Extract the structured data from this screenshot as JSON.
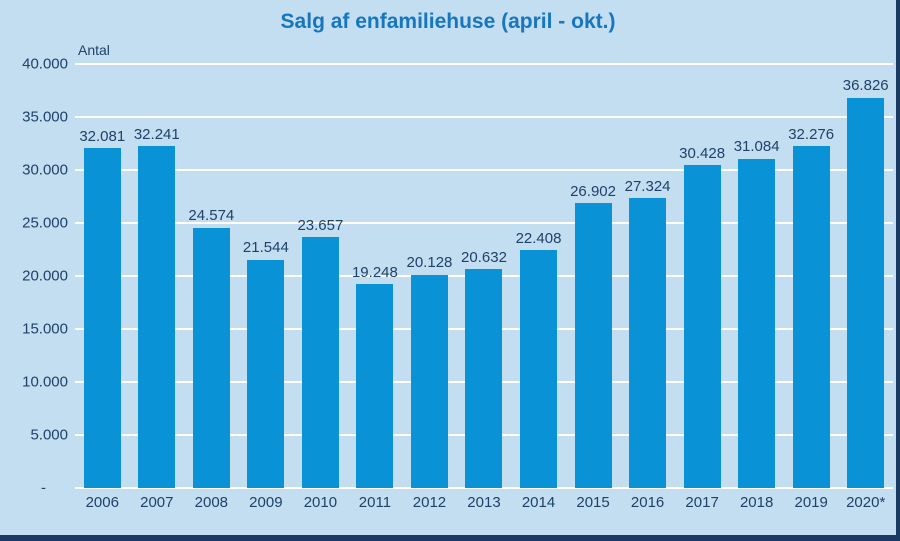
{
  "title": "Salg af enfamiliehuse (april - okt.)",
  "colors": {
    "background": "#c3ddf1",
    "bar": "#0993d6",
    "title": "#1777be",
    "text": "#1e4268",
    "gridline": "#ffffff",
    "border": "#1a3a64"
  },
  "chart_data": {
    "type": "bar",
    "title": "Salg af enfamiliehuse (april - okt.)",
    "ylabel": "Antal",
    "xlabel": "",
    "ylim": [
      0,
      40000
    ],
    "grid": true,
    "legend": "none",
    "categories": [
      "2006",
      "2007",
      "2008",
      "2009",
      "2010",
      "2011",
      "2012",
      "2013",
      "2014",
      "2015",
      "2016",
      "2017",
      "2018",
      "2019",
      "2020*"
    ],
    "values": [
      32081,
      32241,
      24574,
      21544,
      23657,
      19248,
      20128,
      20632,
      22408,
      26902,
      27324,
      30428,
      31084,
      32276,
      36826
    ],
    "value_labels": [
      "32.081",
      "32.241",
      "24.574",
      "21.544",
      "23.657",
      "19.248",
      "20.128",
      "20.632",
      "22.408",
      "26.902",
      "27.324",
      "30.428",
      "31.084",
      "32.276",
      "36.826"
    ],
    "y_ticks": [
      {
        "value": 0,
        "label": "-"
      },
      {
        "value": 5000,
        "label": "5.000"
      },
      {
        "value": 10000,
        "label": "10.000"
      },
      {
        "value": 15000,
        "label": "15.000"
      },
      {
        "value": 20000,
        "label": "20.000"
      },
      {
        "value": 25000,
        "label": "25.000"
      },
      {
        "value": 30000,
        "label": "30.000"
      },
      {
        "value": 35000,
        "label": "35.000"
      },
      {
        "value": 40000,
        "label": "40.000"
      }
    ]
  }
}
